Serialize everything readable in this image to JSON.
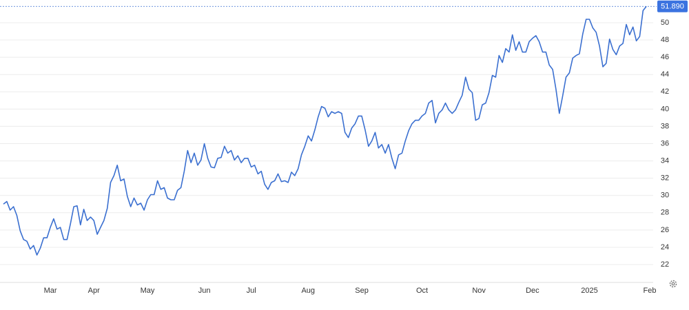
{
  "chart_data": {
    "type": "line",
    "categories": [
      null,
      null,
      null,
      null,
      null,
      null,
      null,
      null,
      null,
      null,
      null,
      null,
      null,
      null,
      "Mar",
      null,
      null,
      null,
      null,
      null,
      null,
      null,
      null,
      null,
      null,
      null,
      null,
      "Apr",
      null,
      null,
      null,
      null,
      null,
      null,
      null,
      null,
      null,
      null,
      null,
      null,
      null,
      null,
      null,
      "May",
      null,
      null,
      null,
      null,
      null,
      null,
      null,
      null,
      null,
      null,
      null,
      null,
      null,
      null,
      null,
      null,
      "Jun",
      null,
      null,
      null,
      null,
      null,
      null,
      null,
      null,
      null,
      null,
      null,
      null,
      null,
      "Jul",
      null,
      null,
      null,
      null,
      null,
      null,
      null,
      null,
      null,
      null,
      null,
      null,
      null,
      null,
      null,
      null,
      "Aug",
      null,
      null,
      null,
      null,
      null,
      null,
      null,
      null,
      null,
      null,
      null,
      null,
      null,
      null,
      null,
      "Sep",
      null,
      null,
      null,
      null,
      null,
      null,
      null,
      null,
      null,
      null,
      null,
      null,
      null,
      null,
      null,
      null,
      null,
      "Oct",
      null,
      null,
      null,
      null,
      null,
      null,
      null,
      null,
      null,
      null,
      null,
      null,
      null,
      null,
      null,
      null,
      "Nov",
      null,
      null,
      null,
      null,
      null,
      null,
      null,
      null,
      null,
      null,
      null,
      null,
      null,
      null,
      null,
      "Dec",
      null,
      null,
      null,
      null,
      null,
      null,
      null,
      null,
      null,
      null,
      null,
      null,
      null,
      null,
      null,
      null,
      "2025",
      null,
      null,
      null,
      null,
      null,
      null,
      null,
      null,
      null,
      null,
      null,
      null,
      null,
      null,
      null,
      null,
      null,
      "Feb"
    ],
    "series": [
      {
        "color": "#3a6fd0",
        "values": [
          29.0,
          29.3,
          28.3,
          28.7,
          27.7,
          25.9,
          24.9,
          24.7,
          23.8,
          24.2,
          23.1,
          23.9,
          25.1,
          25.1,
          26.3,
          27.3,
          26.1,
          26.3,
          24.9,
          24.9,
          26.7,
          28.7,
          28.8,
          26.6,
          28.4,
          27.1,
          27.5,
          27.1,
          25.5,
          26.3,
          27.1,
          28.5,
          31.5,
          32.3,
          33.5,
          31.7,
          31.9,
          29.9,
          28.7,
          29.7,
          28.9,
          29.1,
          28.3,
          29.5,
          30.1,
          30.1,
          31.7,
          30.7,
          30.9,
          29.7,
          29.5,
          29.5,
          30.6,
          30.9,
          32.8,
          35.2,
          33.8,
          34.9,
          33.5,
          34.1,
          36.0,
          34.3,
          33.3,
          33.2,
          34.3,
          34.4,
          35.7,
          34.9,
          35.2,
          34.1,
          34.6,
          33.8,
          34.3,
          34.3,
          33.3,
          33.5,
          32.5,
          32.8,
          31.3,
          30.7,
          31.5,
          31.7,
          32.5,
          31.6,
          31.7,
          31.5,
          32.7,
          32.3,
          33.1,
          34.7,
          35.7,
          36.9,
          36.3,
          37.6,
          39.1,
          40.3,
          40.1,
          39.1,
          39.7,
          39.5,
          39.7,
          39.5,
          37.3,
          36.7,
          37.8,
          38.3,
          39.2,
          39.2,
          37.6,
          35.7,
          36.3,
          37.3,
          35.5,
          35.9,
          34.9,
          35.9,
          34.3,
          33.1,
          34.7,
          34.9,
          36.3,
          37.5,
          38.3,
          38.7,
          38.7,
          39.2,
          39.5,
          40.7,
          41.0,
          38.4,
          39.5,
          39.9,
          40.7,
          39.9,
          39.5,
          39.9,
          40.8,
          41.6,
          43.7,
          42.3,
          41.9,
          38.7,
          38.9,
          40.5,
          40.7,
          41.9,
          43.9,
          43.7,
          46.2,
          45.4,
          47.0,
          46.6,
          48.6,
          46.8,
          47.8,
          46.6,
          46.6,
          47.8,
          48.2,
          48.5,
          47.8,
          46.6,
          46.6,
          45.1,
          44.6,
          42.3,
          39.5,
          41.5,
          43.7,
          44.2,
          45.9,
          46.2,
          46.4,
          48.7,
          50.4,
          50.4,
          49.4,
          48.9,
          47.3,
          44.9,
          45.3,
          48.1,
          46.9,
          46.3,
          47.3,
          47.6,
          49.8,
          48.6,
          49.5,
          47.9,
          48.4,
          51.4,
          51.89,
          null
        ]
      }
    ],
    "current_price": {
      "value": 51.89,
      "label": "51.890"
    },
    "ylim": [
      20,
      52
    ],
    "yticks": [
      22,
      24,
      26,
      28,
      30,
      32,
      34,
      36,
      38,
      40,
      42,
      44,
      46,
      48,
      50
    ],
    "grid": true
  }
}
